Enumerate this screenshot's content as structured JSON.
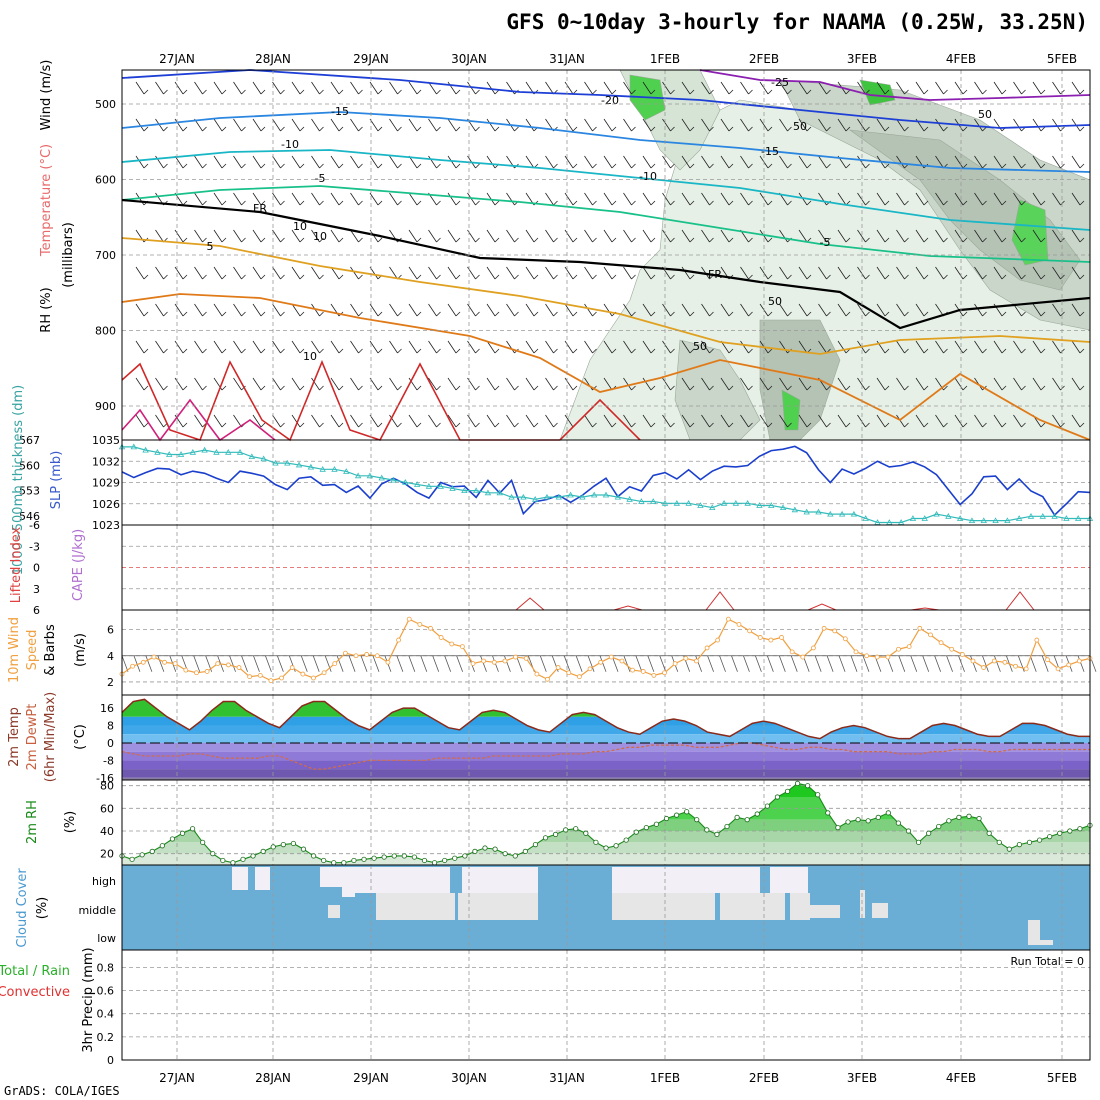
{
  "title": "GFS 0~10day 3-hourly for NAAMA (0.25W, 33.25N)",
  "credit": "GrADS: COLA/IGES",
  "dates": [
    "27JAN",
    "28JAN",
    "29JAN",
    "30JAN",
    "31JAN",
    "1FEB",
    "2FEB",
    "3FEB",
    "4FEB",
    "5FEB"
  ],
  "colors": {
    "grid": "#999999",
    "cloud": "#6aaed6",
    "cloud_gap_high": "#f3eff6",
    "cloud_gap_mid": "#e6e6e6",
    "rh_fill": "#33cc33",
    "temp": "#8a2a1a",
    "dew": "#d26b4a",
    "wind": "#f0a040",
    "slp": "#1a3fcc",
    "thick": "#33bbbb"
  },
  "panels": {
    "upper": {
      "y_label": "(millibars)",
      "vertical_labels": [
        "Wind (m/s)",
        "Temperature (°C)",
        "RH (%)"
      ],
      "yticks": [
        "500",
        "600",
        "700",
        "800",
        "900"
      ],
      "contour_labels": [
        "-25",
        "-20",
        "-15",
        "-10",
        "-5",
        "FR",
        "5",
        "-15",
        "-10",
        "-5",
        "FR",
        "50",
        "50",
        "50",
        "10",
        "10",
        "10",
        "50"
      ]
    },
    "slp_thick": {
      "labels": [
        "1000~500mb thickness (dm)",
        "SLP (mb)"
      ],
      "left_ticks": [
        "567",
        "560",
        "553",
        "546"
      ],
      "right_ticks": [
        "1035",
        "1032",
        "1029",
        "1026",
        "1023"
      ]
    },
    "cape": {
      "labels": [
        "Lifted Index",
        "CAPE (J/kg)"
      ],
      "ticks": [
        "-6",
        "-3",
        "0",
        "3",
        "6"
      ]
    },
    "wind10": {
      "labels": [
        "10m Wind",
        "Speed",
        "& Barbs",
        "(m/s)"
      ],
      "ticks": [
        "6",
        "4",
        "2"
      ]
    },
    "temp2m": {
      "labels": [
        "2m Temp",
        "2m DewPt",
        "(6hr Min/Max)",
        "(°C)"
      ],
      "ticks": [
        "16",
        "8",
        "0",
        "-8",
        "-16"
      ]
    },
    "rh2m": {
      "labels": [
        "2m RH",
        "(%)"
      ],
      "ticks": [
        "80",
        "60",
        "40",
        "20"
      ]
    },
    "cloud": {
      "labels": [
        "Cloud Cover",
        "(%)"
      ],
      "ticks": [
        "high",
        "middle",
        "low"
      ]
    },
    "precip": {
      "labels": [
        "Total / Rain",
        "Convective",
        "3hr Precip (mm)"
      ],
      "ticks": [
        "0.8",
        "0.6",
        "0.4",
        "0.2",
        "0"
      ],
      "run_total": "Run Total = 0"
    }
  },
  "chart_data": [
    {
      "type": "line",
      "title": "Sea level pressure and 1000~500mb thickness",
      "xlabel": "",
      "ylabel": "SLP (mb)",
      "x_start": "26JAN 12Z",
      "step_hours": 3,
      "series": [
        {
          "name": "SLP (mb)",
          "ylim": [
            1023,
            1035
          ],
          "values": [
            1030.5,
            1029.7,
            1030.4,
            1031.0,
            1030.9,
            1030.1,
            1030.6,
            1030.3,
            1029.6,
            1029.0,
            1030.6,
            1030.3,
            1029.9,
            1028.7,
            1028.0,
            1029.6,
            1029.8,
            1028.6,
            1028.7,
            1027.6,
            1028.5,
            1026.8,
            1028.8,
            1029.6,
            1028.8,
            1027.6,
            1026.8,
            1029.0,
            1028.4,
            1028.5,
            1026.9,
            1029.3,
            1027.5,
            1029.3,
            1024.6,
            1026.3,
            1026.6,
            1027.2,
            1026.2,
            1027.2,
            1028.5,
            1029.6,
            1027.0,
            1028.4,
            1027.8,
            1030.0,
            1030.4,
            1029.5,
            1030.8,
            1029.4,
            1030.6,
            1031.3,
            1031.2,
            1031.4,
            1032.7,
            1033.5,
            1033.7,
            1034.1,
            1033.2,
            1030.8,
            1029.0,
            1030.9,
            1030.2,
            1031.0,
            1032.0,
            1031.2,
            1031.4,
            1031.9,
            1031.2,
            1030.1,
            1028.0,
            1025.9,
            1027.4,
            1029.8,
            1029.9,
            1028.0,
            1029.5,
            1027.8,
            1027.0,
            1024.4,
            1026.0,
            1027.7,
            1027.6
          ]
        },
        {
          "name": "1000~500mb thickness (dm)",
          "ylim": [
            543.5,
            567
          ],
          "values": [
            565.1,
            565.1,
            564.2,
            563.6,
            563.0,
            563.0,
            563.6,
            564.2,
            563.6,
            563.6,
            563.6,
            562.4,
            561.8,
            560.6,
            560.6,
            560.1,
            559.5,
            558.9,
            558.9,
            558.3,
            557.1,
            557.1,
            556.5,
            555.9,
            555.3,
            554.7,
            554.2,
            554.2,
            553.6,
            553.0,
            553.0,
            552.4,
            552.4,
            551.2,
            551.2,
            550.6,
            551.2,
            551.2,
            551.8,
            551.2,
            551.8,
            551.8,
            551.2,
            550.6,
            550.0,
            550.0,
            549.5,
            549.5,
            549.5,
            548.9,
            548.3,
            549.5,
            549.5,
            549.5,
            548.9,
            548.9,
            548.3,
            547.7,
            547.1,
            547.1,
            546.5,
            546.5,
            546.5,
            545.3,
            544.2,
            544.2,
            544.2,
            545.3,
            545.3,
            546.5,
            545.9,
            545.3,
            544.7,
            544.7,
            544.7,
            544.7,
            545.3,
            545.9,
            545.9,
            545.9,
            545.3,
            545.3,
            545.3
          ]
        }
      ]
    },
    {
      "type": "line",
      "title": "10m Wind Speed",
      "ylabel": "(m/s)",
      "ylim": [
        1,
        7.5
      ],
      "x_start": "26JAN 12Z",
      "step_hours": 3,
      "series": [
        {
          "name": "10m Wind Speed",
          "values": [
            2.6,
            3.2,
            3.5,
            3.9,
            3.5,
            3.4,
            2.9,
            2.7,
            2.8,
            3.4,
            3.3,
            3.1,
            2.4,
            2.5,
            2.1,
            2.3,
            3.1,
            2.6,
            2.3,
            2.7,
            3.4,
            4.2,
            4.0,
            4.1,
            4.0,
            3.5,
            5.2,
            6.8,
            6.4,
            6.1,
            5.4,
            4.9,
            4.7,
            3.4,
            3.6,
            3.5,
            3.6,
            3.9,
            3.8,
            2.6,
            2.2,
            3.1,
            2.7,
            2.4,
            3.0,
            3.5,
            3.9,
            3.6,
            2.9,
            2.8,
            2.5,
            2.7,
            3.4,
            3.8,
            3.6,
            4.6,
            5.2,
            6.8,
            6.4,
            5.9,
            5.4,
            5.2,
            5.4,
            4.3,
            3.9,
            4.6,
            6.1,
            5.9,
            5.3,
            4.3,
            4.0,
            3.9,
            3.9,
            4.5,
            4.7,
            6.1,
            5.6,
            5.0,
            4.5,
            4.1,
            3.6,
            3.1,
            3.6,
            3.5,
            3.2,
            3.0,
            5.2,
            3.7,
            3.0,
            3.3,
            3.6,
            3.8
          ]
        }
      ]
    },
    {
      "type": "line",
      "title": "2m Temperature and Dew Point",
      "ylabel": "(°C)",
      "ylim": [
        -17,
        22
      ],
      "x_start": "26JAN 12Z",
      "step_hours": 3,
      "series": [
        {
          "name": "2m Temp",
          "values": [
            14,
            19,
            20,
            16,
            12,
            9,
            6,
            10,
            15,
            19,
            19,
            15,
            12,
            9,
            7,
            12,
            17,
            19,
            19,
            15,
            11,
            8,
            6,
            10,
            14,
            16,
            16,
            13,
            10,
            7,
            6,
            10,
            14,
            15,
            14,
            11,
            8,
            6,
            5,
            9,
            13,
            14,
            13,
            10,
            7,
            5,
            4,
            7,
            10,
            11,
            10,
            8,
            5,
            4,
            3,
            6,
            9,
            10,
            9,
            7,
            5,
            3,
            2,
            5,
            7,
            8,
            7,
            5,
            3,
            2,
            2,
            5,
            8,
            9,
            8,
            6,
            4,
            3,
            3,
            6,
            9,
            9,
            8,
            6,
            4,
            3,
            3
          ]
        },
        {
          "name": "2m DewPt",
          "values": [
            -4,
            -5,
            -6,
            -6,
            -6,
            -6,
            -5,
            -5,
            -6,
            -7,
            -7,
            -7,
            -7,
            -6,
            -6,
            -8,
            -10,
            -12,
            -12,
            -11,
            -10,
            -9,
            -8,
            -8,
            -8,
            -8,
            -8,
            -8,
            -7,
            -7,
            -7,
            -7,
            -7,
            -6,
            -6,
            -6,
            -6,
            -6,
            -6,
            -5,
            -5,
            -5,
            -4,
            -4,
            -3,
            -2,
            -2,
            -1,
            -1,
            -1,
            -1,
            -2,
            -2,
            -2,
            -1,
            0,
            0,
            -1,
            -2,
            -3,
            -3,
            -2,
            -2,
            -3,
            -3,
            -4,
            -4,
            -4,
            -4,
            -5,
            -5,
            -5,
            -4,
            -4,
            -3,
            -3,
            -3,
            -4,
            -4,
            -3,
            -3,
            -3,
            -3,
            -3,
            -3,
            -3,
            -3
          ]
        }
      ]
    },
    {
      "type": "line",
      "title": "2m RH",
      "ylabel": "(%)",
      "ylim": [
        10,
        85
      ],
      "x_start": "26JAN 12Z",
      "step_hours": 3,
      "series": [
        {
          "name": "2m RH",
          "values": [
            18,
            15,
            19,
            22,
            27,
            33,
            38,
            42,
            30,
            20,
            14,
            12,
            15,
            18,
            22,
            26,
            28,
            29,
            24,
            18,
            14,
            12,
            12,
            14,
            15,
            16,
            17,
            18,
            18,
            17,
            14,
            12,
            14,
            16,
            18,
            22,
            25,
            24,
            20,
            18,
            22,
            28,
            34,
            37,
            41,
            42,
            38,
            30,
            25,
            27,
            32,
            39,
            43,
            46,
            51,
            54,
            57,
            50,
            41,
            37,
            44,
            52,
            50,
            55,
            62,
            70,
            75,
            82,
            80,
            72,
            56,
            43,
            48,
            50,
            49,
            52,
            56,
            47,
            40,
            30,
            38,
            44,
            49,
            52,
            53,
            51,
            38,
            30,
            24,
            28,
            30,
            32,
            35,
            38,
            40,
            42,
            45
          ]
        }
      ]
    }
  ]
}
